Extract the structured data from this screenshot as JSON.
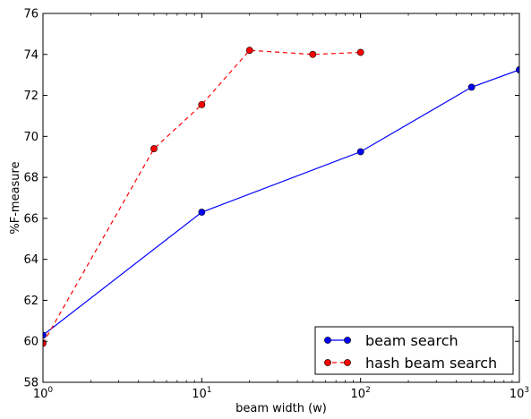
{
  "chart_data": {
    "type": "line",
    "title": "",
    "xlabel": "beam width (w)",
    "ylabel": "%F-measure",
    "xscale": "log",
    "xlim": [
      1,
      1000
    ],
    "ylim": [
      58,
      76
    ],
    "x_ticks": [
      1,
      10,
      100,
      1000
    ],
    "x_tick_labels": [
      {
        "base": "10",
        "exp": "0"
      },
      {
        "base": "10",
        "exp": "1"
      },
      {
        "base": "10",
        "exp": "2"
      },
      {
        "base": "10",
        "exp": "3"
      }
    ],
    "y_ticks": [
      58,
      60,
      62,
      64,
      66,
      68,
      70,
      72,
      74,
      76
    ],
    "grid": false,
    "legend_position": "bottom-right",
    "series": [
      {
        "name": "beam search",
        "color": "#0000ff",
        "marker_color": "#0000ff",
        "line_style": "solid",
        "x": [
          1,
          10,
          100,
          500,
          1000
        ],
        "y": [
          60.3,
          66.3,
          69.25,
          72.4,
          73.25
        ]
      },
      {
        "name": "hash beam search",
        "color": "#ff0000",
        "marker_color": "#ff0000",
        "line_style": "dashed",
        "x": [
          1,
          5,
          10,
          20,
          50,
          100
        ],
        "y": [
          59.9,
          69.4,
          71.55,
          74.2,
          74.0,
          74.1
        ]
      }
    ]
  }
}
